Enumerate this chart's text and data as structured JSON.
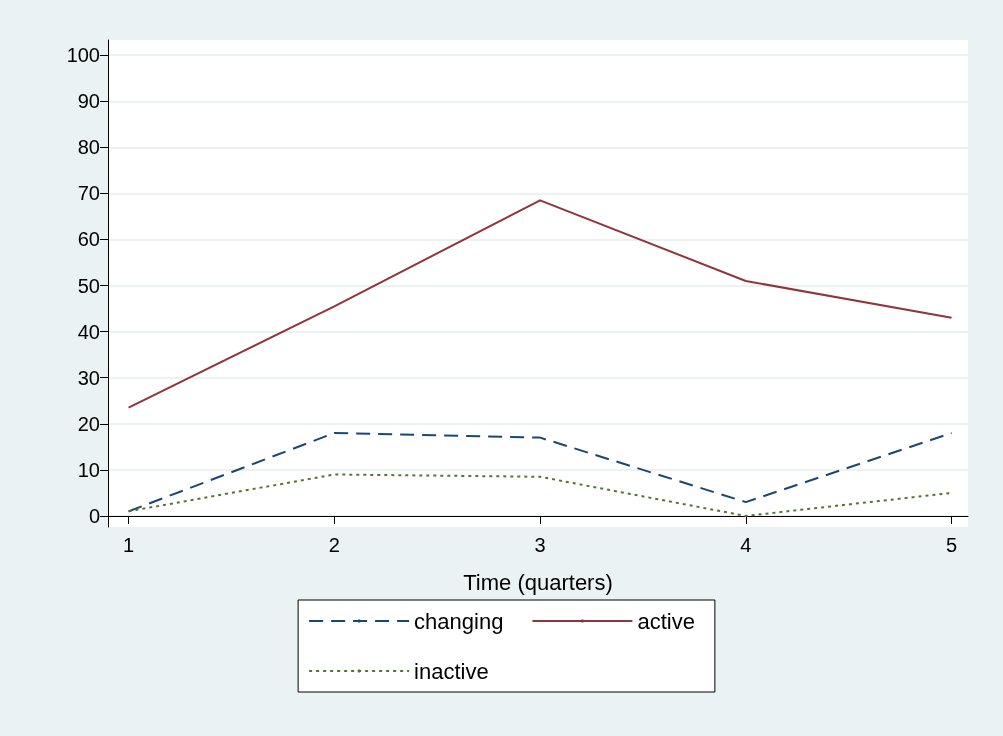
{
  "chart_data": {
    "type": "line",
    "xlabel": "Time (quarters)",
    "x": [
      1,
      2,
      3,
      4,
      5
    ],
    "xlim": [
      0.9,
      5.08
    ],
    "xticks": [
      1,
      2,
      3,
      4,
      5
    ],
    "ylim": [
      -2.4,
      103.3
    ],
    "yticks": [
      0,
      10,
      20,
      30,
      40,
      50,
      60,
      70,
      80,
      90,
      100
    ],
    "grid": "y",
    "legend": "bottom",
    "marker": "none",
    "series": [
      {
        "name": "changing",
        "color": "#1a476f",
        "line_style": "dashed",
        "values": [
          1,
          18,
          17,
          3,
          18
        ]
      },
      {
        "name": "active",
        "color": "#90353b",
        "line_style": "solid",
        "values": [
          23.5,
          45.5,
          68.5,
          51,
          43
        ]
      },
      {
        "name": "inactive",
        "color": "#55752f",
        "line_style": "dotted",
        "values": [
          1,
          9,
          8.5,
          0,
          5
        ]
      }
    ]
  }
}
